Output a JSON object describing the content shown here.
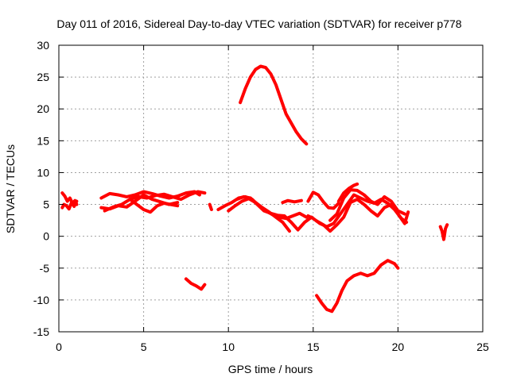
{
  "chart_data": {
    "type": "scatter",
    "title": "Day 011 of 2016, Sidereal Day-to-day VTEC variation (SDTVAR) for receiver p778",
    "xlabel": "GPS time / hours",
    "ylabel": "SDTVAR / TECUs",
    "xlim": [
      0,
      25
    ],
    "ylim": [
      -15,
      30
    ],
    "xticks": [
      0,
      5,
      10,
      15,
      20,
      25
    ],
    "yticks": [
      -15,
      -10,
      -5,
      0,
      5,
      10,
      15,
      20,
      25,
      30
    ],
    "grid": true,
    "series_color": "#ff0000",
    "series": [
      {
        "name": "arc-1a",
        "x": [
          0.2,
          0.35,
          0.5,
          0.65,
          0.8,
          0.95,
          1.05
        ],
        "y": [
          6.8,
          6.3,
          5.5,
          6.0,
          5.2,
          5.6,
          5.0
        ]
      },
      {
        "name": "arc-1b",
        "x": [
          0.2,
          0.3,
          0.45,
          0.6,
          0.75,
          0.9,
          1.05
        ],
        "y": [
          4.5,
          5.0,
          4.8,
          4.3,
          5.3,
          4.7,
          5.5
        ]
      },
      {
        "name": "arc-2",
        "x": [
          2.5,
          3,
          3.5,
          4,
          4.5,
          5,
          5.5,
          6,
          6.5,
          7,
          7.5,
          8,
          8.3
        ],
        "y": [
          6.0,
          6.7,
          6.5,
          6.2,
          6.5,
          7.0,
          6.7,
          6.3,
          6.0,
          6.3,
          6.8,
          7.0,
          6.5
        ]
      },
      {
        "name": "arc-3",
        "x": [
          2.5,
          3,
          3.5,
          4,
          4.5,
          5,
          5.5,
          6,
          6.5,
          7
        ],
        "y": [
          4.5,
          4.3,
          4.8,
          4.6,
          5.5,
          6.5,
          5.8,
          5.4,
          5.0,
          5.3
        ]
      },
      {
        "name": "arc-4",
        "x": [
          2.7,
          3.2,
          3.7,
          4.2,
          4.7,
          5.2,
          5.7,
          6.2,
          6.7,
          7.2,
          7.7,
          8.2,
          8.6
        ],
        "y": [
          4.0,
          4.6,
          5.0,
          5.8,
          6.2,
          6.0,
          6.4,
          6.6,
          6.2,
          5.8,
          6.5,
          7.0,
          6.8
        ]
      },
      {
        "name": "arc-5",
        "x": [
          4.2,
          4.6,
          5,
          5.4,
          5.8,
          6.2,
          6.6,
          7.0
        ],
        "y": [
          5.8,
          5.0,
          4.2,
          3.8,
          4.8,
          5.2,
          5.0,
          4.8
        ]
      },
      {
        "name": "arc-6",
        "x": [
          7.5,
          7.8,
          8.1,
          8.4,
          8.6
        ],
        "y": [
          -6.7,
          -7.4,
          -7.8,
          -8.3,
          -7.6
        ]
      },
      {
        "name": "arc-7",
        "x": [
          8.9,
          9.0
        ],
        "y": [
          5.0,
          4.2
        ]
      },
      {
        "name": "arc-8",
        "x": [
          9.4,
          9.8,
          10.2,
          10.6,
          11.0,
          11.4,
          11.8,
          12.2,
          12.6,
          13.0,
          13.4,
          13.8,
          14.2,
          14.6
        ],
        "y": [
          4.2,
          4.8,
          5.3,
          6.0,
          6.2,
          5.8,
          4.8,
          4.0,
          3.4,
          3.0,
          2.8,
          3.2,
          3.6,
          3.0
        ]
      },
      {
        "name": "arc-9",
        "x": [
          10.0,
          10.4,
          10.8,
          11.2,
          11.6,
          12.0,
          12.4,
          12.8,
          13.2,
          13.6
        ],
        "y": [
          4.0,
          4.8,
          5.5,
          5.9,
          5.3,
          4.5,
          3.8,
          3.0,
          2.2,
          0.8
        ]
      },
      {
        "name": "arc-10",
        "x": [
          10.5,
          10.9,
          11.3,
          11.7,
          12.1,
          12.5,
          12.9,
          13.3,
          13.7,
          14.1,
          14.5,
          14.9
        ],
        "y": [
          5.8,
          6.2,
          6.0,
          5.0,
          4.0,
          3.6,
          3.3,
          3.2,
          2.2,
          1.0,
          2.2,
          3.0
        ]
      },
      {
        "name": "arc-11",
        "x": [
          10.7,
          11.0,
          11.3,
          11.6,
          11.9,
          12.2,
          12.5,
          12.8,
          13.1,
          13.4,
          13.7,
          14.0,
          14.3,
          14.6
        ],
        "y": [
          21.0,
          23.2,
          25.0,
          26.2,
          26.7,
          26.5,
          25.5,
          23.8,
          21.5,
          19.2,
          17.8,
          16.4,
          15.3,
          14.5
        ]
      },
      {
        "name": "arc-12",
        "x": [
          13.2,
          13.5,
          13.9,
          14.3
        ],
        "y": [
          5.3,
          5.6,
          5.4,
          5.6
        ]
      },
      {
        "name": "arc-13",
        "x": [
          14.7,
          15.0,
          15.3,
          15.6,
          15.9,
          16.2,
          16.5
        ],
        "y": [
          5.5,
          6.9,
          6.5,
          5.4,
          4.5,
          4.4,
          5.2
        ]
      },
      {
        "name": "arc-14",
        "x": [
          14.7,
          15.0,
          15.4,
          15.8,
          16.2,
          16.6,
          17.0,
          17.4,
          17.8,
          18.2,
          18.6,
          19.0,
          19.4,
          19.8,
          20.2,
          20.5
        ],
        "y": [
          3.2,
          2.8,
          2.0,
          1.5,
          2.0,
          3.5,
          5.0,
          6.5,
          6.0,
          5.5,
          5.2,
          5.8,
          5.2,
          4.2,
          2.8,
          2.2
        ]
      },
      {
        "name": "arc-15",
        "x": [
          15.2,
          15.6,
          16.0,
          16.4,
          16.8,
          17.2,
          17.6,
          18.0,
          18.4,
          18.8,
          19.2,
          19.6,
          20.0,
          20.4,
          20.6
        ],
        "y": [
          2.4,
          1.8,
          0.8,
          1.8,
          3.0,
          5.3,
          5.8,
          5.0,
          4.0,
          3.2,
          4.5,
          5.0,
          3.5,
          2.0,
          3.8
        ]
      },
      {
        "name": "arc-16",
        "x": [
          16.0,
          16.4,
          16.8,
          17.2,
          17.6,
          18.0,
          18.4,
          18.8,
          19.2,
          19.6,
          20.0,
          20.4
        ],
        "y": [
          2.5,
          3.5,
          6.0,
          7.3,
          7.2,
          6.5,
          5.5,
          5.0,
          6.2,
          5.5,
          4.0,
          3.5
        ]
      },
      {
        "name": "arc-17",
        "x": [
          16.5,
          16.8,
          17.1,
          17.4,
          17.6
        ],
        "y": [
          5.5,
          6.8,
          7.5,
          8.0,
          8.2
        ]
      },
      {
        "name": "arc-18",
        "x": [
          15.2,
          15.5,
          15.8,
          16.1,
          16.4,
          16.7,
          17.0,
          17.4,
          17.8,
          18.2,
          18.6,
          19.0,
          19.4,
          19.8,
          20.0
        ],
        "y": [
          -9.3,
          -10.5,
          -11.5,
          -11.8,
          -10.5,
          -8.5,
          -7.0,
          -6.2,
          -5.8,
          -6.2,
          -5.8,
          -4.5,
          -3.8,
          -4.3,
          -5.0
        ]
      },
      {
        "name": "arc-19",
        "x": [
          22.5,
          22.6,
          22.7,
          22.8,
          22.9
        ],
        "y": [
          1.5,
          0.8,
          -0.5,
          1.2,
          1.8
        ]
      }
    ]
  }
}
